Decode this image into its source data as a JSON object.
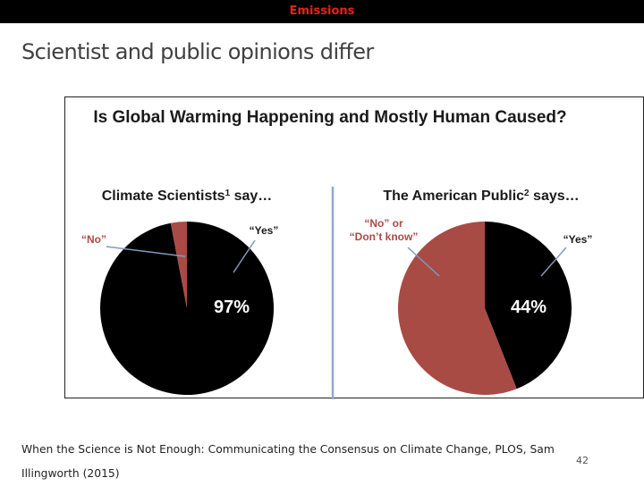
{
  "header": {
    "section": "Emissions"
  },
  "slide": {
    "title": "Scientist and public opinions differ",
    "caption": "When the Science is Not Enough: Communicating the Consensus on Climate Change, PLOS, Sam Illingworth (2015)",
    "page_number": "42"
  },
  "colors": {
    "yes": "#000000",
    "no": "#a84b45",
    "divider": "#8fa9c9",
    "leader": "#7d9bbd"
  },
  "chart_data": {
    "type": "pie",
    "title": "Is Global Warming Happening and Mostly Human Caused?",
    "charts": [
      {
        "name": "scientists",
        "title_text": "Climate Scientists",
        "title_sup": "1",
        "title_suffix": " say…",
        "slices": [
          {
            "label": "“Yes”",
            "value": 97,
            "color": "#000000",
            "value_label": "97%"
          },
          {
            "label": "“No”",
            "value": 3,
            "color": "#a84b45"
          }
        ]
      },
      {
        "name": "public",
        "title_text": "The American Public",
        "title_sup": "2",
        "title_suffix": " says…",
        "slices": [
          {
            "label": "“Yes”",
            "value": 44,
            "color": "#000000",
            "value_label": "44%"
          },
          {
            "label_lines": [
              "“No” or",
              "“Don’t know”"
            ],
            "value": 56,
            "color": "#a84b45"
          }
        ]
      }
    ]
  }
}
